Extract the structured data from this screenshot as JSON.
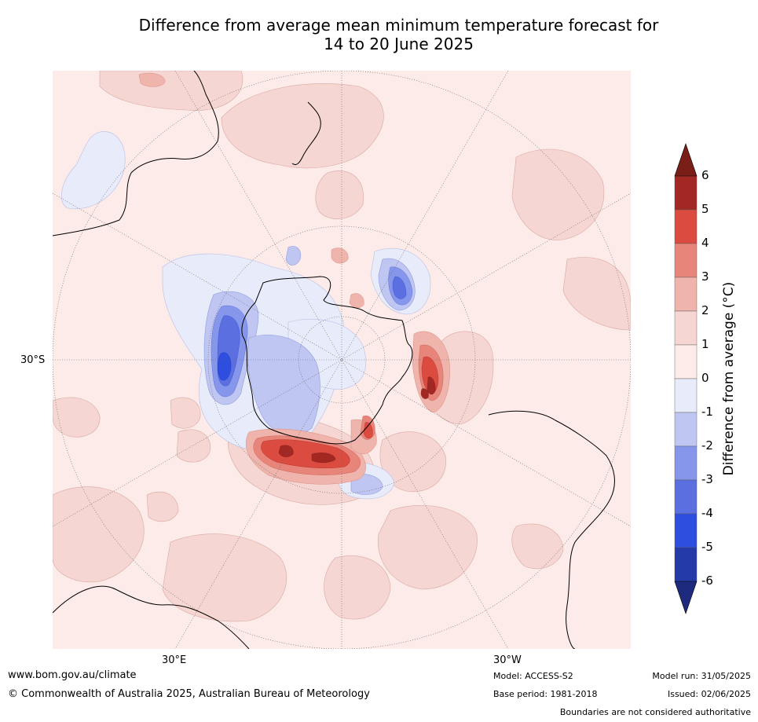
{
  "title": {
    "line1": "Difference from average mean minimum temperature forecast for",
    "line2": "14 to 20 June 2025"
  },
  "map": {
    "projection": "south-polar-stereographic",
    "latitude_labels": [
      "30°S"
    ],
    "longitude_labels": [
      "30°E",
      "30°W"
    ],
    "colors": {
      "background_pos_0_1": "#fcebe8",
      "land_outline": "#000000",
      "graticule": "#666666"
    }
  },
  "colorbar": {
    "label": "Difference from average (°C)",
    "ticks": [
      "6",
      "5",
      "4",
      "3",
      "2",
      "1",
      "0",
      "-1",
      "-2",
      "-3",
      "-4",
      "-5",
      "-6"
    ],
    "bins": [
      {
        "range": [
          5,
          6
        ],
        "color": "#a32823"
      },
      {
        "range": [
          4,
          5
        ],
        "color": "#db4b3f"
      },
      {
        "range": [
          3,
          4
        ],
        "color": "#e8857a"
      },
      {
        "range": [
          2,
          3
        ],
        "color": "#efb4ac"
      },
      {
        "range": [
          1,
          2
        ],
        "color": "#f6d6d2"
      },
      {
        "range": [
          0,
          1
        ],
        "color": "#fcebe8"
      },
      {
        "range": [
          -1,
          0
        ],
        "color": "#e8ebfa"
      },
      {
        "range": [
          -2,
          -1
        ],
        "color": "#bfc6f2"
      },
      {
        "range": [
          -3,
          -2
        ],
        "color": "#8696ea"
      },
      {
        "range": [
          -4,
          -3
        ],
        "color": "#5b6fe0"
      },
      {
        "range": [
          -5,
          -4
        ],
        "color": "#2e4ee0"
      },
      {
        "range": [
          -6,
          -5
        ],
        "color": "#233aa8"
      }
    ],
    "over_color": "#7a1e18",
    "under_color": "#1e2a7e"
  },
  "footer": {
    "website": "www.bom.gov.au/climate",
    "copyright": "© Commonwealth of Australia 2025, Australian Bureau of Meteorology",
    "model": "Model: ACCESS-S2",
    "base_period": "Base period: 1981-2018",
    "model_run": "Model run: 31/05/2025",
    "issued": "Issued: 02/06/2025",
    "disclaimer": "Boundaries are not considered authoritative"
  }
}
